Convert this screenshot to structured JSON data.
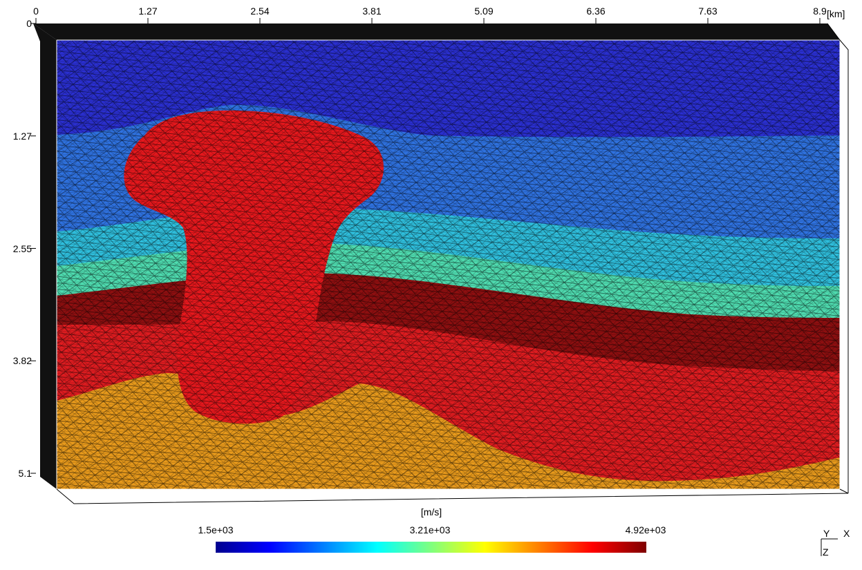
{
  "x_axis": {
    "ticks": [
      "0",
      "1.27",
      "2.54",
      "3.81",
      "5.09",
      "6.36",
      "7.63",
      "8.9"
    ],
    "unit": "[km]"
  },
  "y_axis": {
    "ticks": [
      "0",
      "1.27",
      "2.55",
      "3.82",
      "5.1"
    ]
  },
  "colorbar": {
    "unit": "[m/s]",
    "labels": [
      "1.5e+03",
      "3.21e+03",
      "4.92e+03"
    ],
    "colors": [
      "#00008f",
      "#0000ff",
      "#007fff",
      "#00ffff",
      "#7fff7f",
      "#ffff00",
      "#ff7f00",
      "#ff0000",
      "#7f0000"
    ]
  },
  "orientation_axes": {
    "y": "Y",
    "x": "X",
    "z": "Z"
  },
  "layer_colors": {
    "deep_blue": "#2a2fd0",
    "mid_blue": "#2f72e0",
    "cyan": "#2fbfdd",
    "aqua_green": "#4fdcb0",
    "dark_red": "#8e0f10",
    "red": "#e01c20",
    "salt_red": "#e8181d",
    "orange": "#e89a1c",
    "mesh_line": "#000000"
  }
}
